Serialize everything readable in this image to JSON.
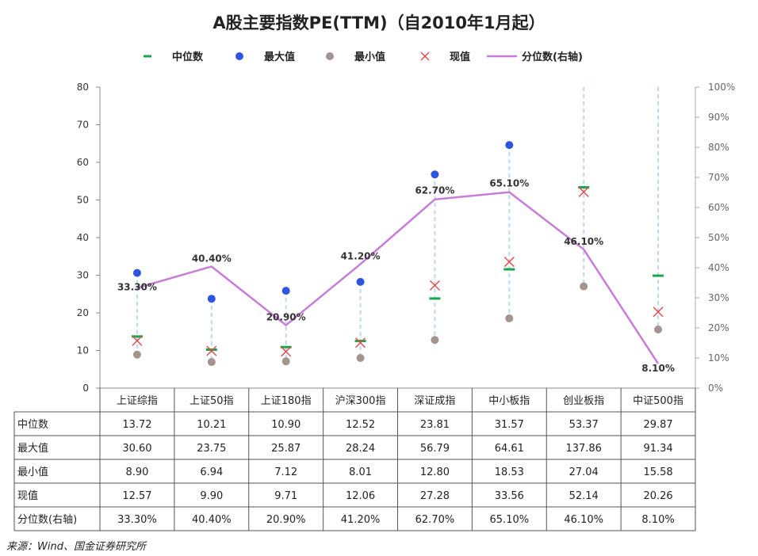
{
  "chart_data": {
    "type": "line",
    "title": "A股主要指数PE(TTM)（自2010年1月起）",
    "categories": [
      "上证综指",
      "上证50指",
      "上证180指",
      "沪深300指",
      "深证成指",
      "中小板指",
      "创业板指",
      "中证500指"
    ],
    "series": [
      {
        "name": "中位数",
        "values": [
          13.72,
          10.21,
          10.9,
          12.52,
          23.81,
          31.57,
          53.37,
          29.87
        ],
        "marker": "dash",
        "color": "#1aa64b"
      },
      {
        "name": "最大值",
        "values": [
          30.6,
          23.75,
          25.87,
          28.24,
          56.79,
          64.61,
          137.86,
          91.34
        ],
        "marker": "dot",
        "color": "#2f55e0"
      },
      {
        "name": "最小值",
        "values": [
          8.9,
          6.94,
          7.12,
          8.01,
          12.8,
          18.53,
          27.04,
          15.58
        ],
        "marker": "dot",
        "color": "#a3948e"
      },
      {
        "name": "现值",
        "values": [
          12.57,
          9.9,
          9.71,
          12.06,
          27.28,
          33.56,
          52.14,
          20.26
        ],
        "marker": "x",
        "color": "#e2474a"
      },
      {
        "name": "分位数(右轴)",
        "values": [
          33.3,
          40.4,
          20.9,
          41.2,
          62.7,
          65.1,
          46.1,
          8.1
        ],
        "axis": "right",
        "color": "#c77dd8"
      }
    ],
    "point_labels": [
      "33.30%",
      "40.40%",
      "20.90%",
      "41.20%",
      "62.70%",
      "65.10%",
      "46.10%",
      "8.10%"
    ],
    "y_left": {
      "ylim": [
        0,
        80
      ],
      "ticks": [
        "0",
        "10",
        "20",
        "30",
        "40",
        "50",
        "60",
        "70",
        "80"
      ]
    },
    "y_right": {
      "ylim": [
        0,
        100
      ],
      "ticks": [
        "0%",
        "10%",
        "20%",
        "30%",
        "40%",
        "50%",
        "60%",
        "70%",
        "80%",
        "90%",
        "100%"
      ]
    },
    "legend_position": "top",
    "range_line_color": "#bcd8f0",
    "table": {
      "row_labels": [
        "中位数",
        "最大值",
        "最小值",
        "现值",
        "分位数(右轴)"
      ],
      "rows": [
        [
          "13.72",
          "10.21",
          "10.90",
          "12.52",
          "23.81",
          "31.57",
          "53.37",
          "29.87"
        ],
        [
          "30.60",
          "23.75",
          "25.87",
          "28.24",
          "56.79",
          "64.61",
          "137.86",
          "91.34"
        ],
        [
          "8.90",
          "6.94",
          "7.12",
          "8.01",
          "12.80",
          "18.53",
          "27.04",
          "15.58"
        ],
        [
          "12.57",
          "9.90",
          "9.71",
          "12.06",
          "27.28",
          "33.56",
          "52.14",
          "20.26"
        ],
        [
          "33.30%",
          "40.40%",
          "20.90%",
          "41.20%",
          "62.70%",
          "65.10%",
          "46.10%",
          "8.10%"
        ]
      ]
    },
    "source": "来源：Wind、国金证券研究所"
  }
}
